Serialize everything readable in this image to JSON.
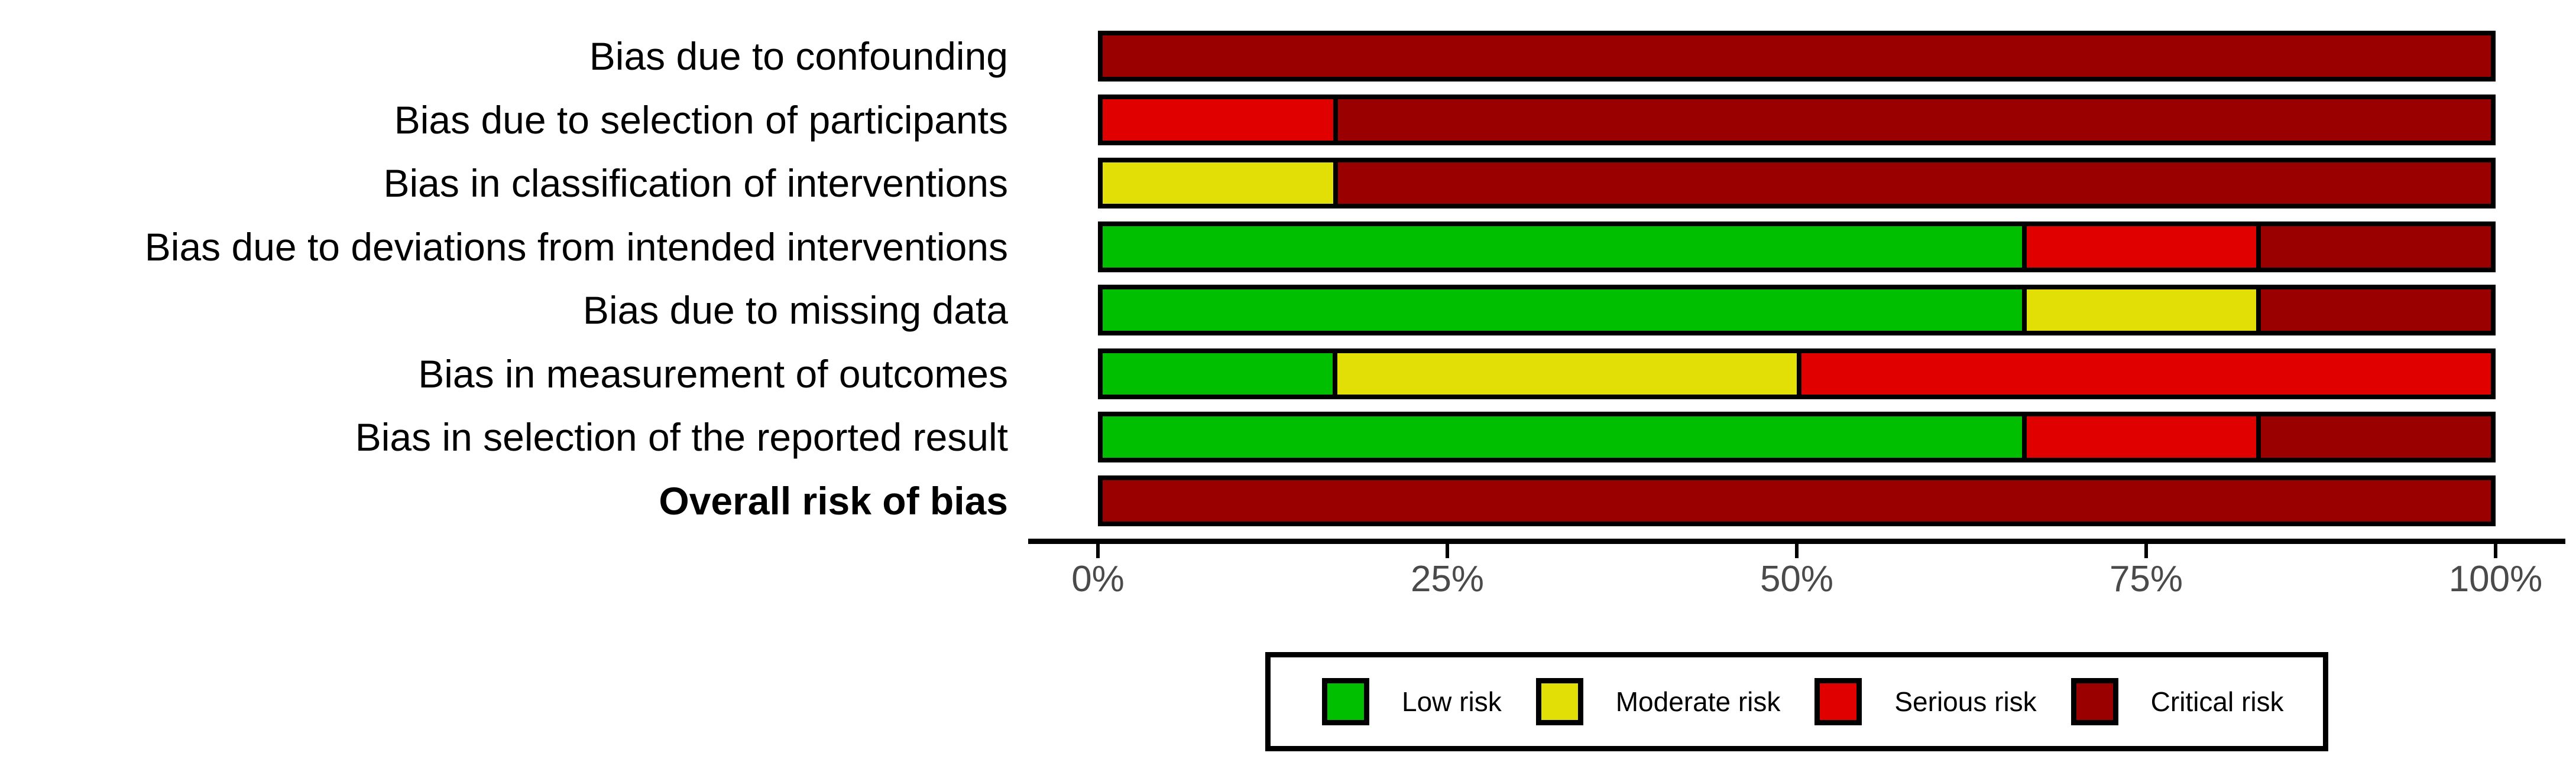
{
  "chart_data": {
    "type": "bar",
    "variant": "horizontal-stacked",
    "title": "",
    "xlabel": "",
    "ylabel": "",
    "units": "percent of studies",
    "x_axis": {
      "ticks": [
        "0%",
        "25%",
        "50%",
        "75%",
        "100%"
      ],
      "range": [
        0,
        100
      ],
      "grid": false
    },
    "categories": [
      "Bias due to confounding",
      "Bias due to selection of participants",
      "Bias in classification of interventions",
      "Bias due to deviations from intended interventions",
      "Bias due to missing data",
      "Bias in measurement of outcomes",
      "Bias in selection of the reported result",
      "Overall risk of bias"
    ],
    "bold_categories": [
      "Overall risk of bias"
    ],
    "series": [
      {
        "name": "Low risk",
        "color": "#00BE00",
        "values": [
          0,
          0,
          0,
          66.667,
          66.667,
          16.667,
          66.667,
          0
        ]
      },
      {
        "name": "Moderate risk",
        "color": "#E2DF07",
        "values": [
          0,
          0,
          16.667,
          0,
          16.667,
          33.333,
          0,
          0
        ]
      },
      {
        "name": "Serious risk",
        "color": "#E00000",
        "values": [
          0,
          16.667,
          0,
          16.667,
          0,
          50,
          16.667,
          0
        ]
      },
      {
        "name": "Critical risk",
        "color": "#9A0000",
        "values": [
          100,
          83.333,
          83.333,
          16.667,
          16.667,
          0,
          16.667,
          100
        ]
      }
    ],
    "legend": {
      "position": "bottom",
      "border": true,
      "items": [
        {
          "label": "Low risk",
          "color": "#00BE00"
        },
        {
          "label": "Moderate risk",
          "color": "#E2DF07"
        },
        {
          "label": "Serious risk",
          "color": "#E00000"
        },
        {
          "label": "Critical risk",
          "color": "#9A0000"
        }
      ]
    },
    "segment_outline_color": "#000000",
    "background_color": "#ffffff"
  }
}
